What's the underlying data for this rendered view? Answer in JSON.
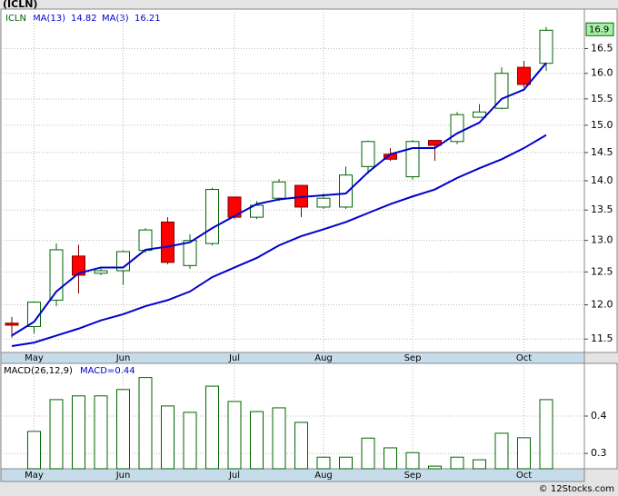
{
  "chart_data": [
    {
      "type": "candlestick",
      "title": "(ICLN)",
      "symbol": "ICLN",
      "log_scale": true,
      "grid": true,
      "categories": [
        null,
        "May",
        null,
        null,
        null,
        "Jun",
        null,
        null,
        null,
        null,
        "Jul",
        null,
        null,
        null,
        "Aug",
        null,
        null,
        null,
        "Sep",
        null,
        null,
        null,
        null,
        "Oct",
        null
      ],
      "open": [
        11.73,
        11.68,
        12.07,
        12.75,
        12.48,
        12.52,
        12.84,
        13.3,
        12.6,
        12.95,
        13.72,
        13.38,
        13.7,
        13.92,
        13.55,
        13.55,
        14.25,
        14.47,
        14.07,
        14.72,
        14.7,
        15.15,
        15.32,
        16.12,
        16.2
      ],
      "high": [
        11.82,
        12.05,
        12.95,
        12.93,
        12.57,
        12.84,
        13.2,
        13.38,
        13.1,
        13.88,
        13.73,
        13.65,
        14.03,
        13.93,
        13.78,
        14.25,
        14.72,
        14.58,
        14.73,
        14.73,
        15.25,
        15.4,
        16.12,
        16.25,
        16.95
      ],
      "low": [
        11.52,
        11.58,
        11.98,
        12.17,
        12.45,
        12.3,
        12.8,
        12.62,
        12.55,
        12.92,
        13.35,
        13.35,
        13.65,
        13.38,
        13.52,
        13.52,
        14.12,
        14.35,
        14.02,
        14.35,
        14.65,
        15.15,
        15.3,
        15.72,
        16.05
      ],
      "close": [
        11.7,
        12.04,
        12.85,
        12.45,
        12.52,
        12.82,
        13.17,
        12.65,
        13.0,
        13.85,
        13.38,
        13.58,
        13.98,
        13.55,
        13.7,
        14.1,
        14.7,
        14.38,
        14.7,
        14.63,
        15.2,
        15.25,
        16.0,
        15.78,
        16.88
      ],
      "up_color": "#006400",
      "down_color": "#ff0000",
      "series": [
        {
          "name": "MA(13)",
          "legend_value": 14.82,
          "color": "#0000cc",
          "values": [
            11.4,
            11.45,
            11.55,
            11.65,
            11.77,
            11.86,
            11.98,
            12.07,
            12.2,
            12.42,
            12.57,
            12.72,
            12.92,
            13.07,
            13.18,
            13.3,
            13.45,
            13.6,
            13.73,
            13.85,
            14.05,
            14.22,
            14.38,
            14.58,
            14.82
          ]
        },
        {
          "name": "MA(3)",
          "legend_value": 16.21,
          "color": "#0000cc",
          "values": [
            11.55,
            11.75,
            12.2,
            12.48,
            12.57,
            12.57,
            12.85,
            12.9,
            12.97,
            13.2,
            13.4,
            13.6,
            13.68,
            13.72,
            13.75,
            13.78,
            14.15,
            14.47,
            14.58,
            14.58,
            14.85,
            15.05,
            15.5,
            15.68,
            16.21
          ]
        }
      ],
      "last_price": 16.9,
      "ylim": [
        11.31,
        17.33
      ],
      "yticks": [
        11.5,
        {
          "value": 12,
          "label": "12.0"
        },
        12.5,
        {
          "value": 13,
          "label": "13.0"
        },
        13.5,
        {
          "value": 14,
          "label": "14.0"
        },
        14.5,
        {
          "value": 15,
          "label": "15.0"
        },
        15.5,
        {
          "value": 16,
          "label": "16.0"
        },
        16.5
      ],
      "credit": "© 12Stocks.com"
    },
    {
      "type": "bar",
      "title": "MACD(26,12,9)",
      "annotation": "MACD=0.44",
      "color": "#006400",
      "grid": true,
      "categories": [
        null,
        "May",
        null,
        null,
        null,
        "Jun",
        null,
        null,
        null,
        null,
        "Jul",
        null,
        null,
        null,
        "Aug",
        null,
        null,
        null,
        "Sep",
        null,
        null,
        null,
        null,
        "Oct",
        null
      ],
      "values": [
        null,
        0.359,
        0.444,
        0.454,
        0.454,
        0.471,
        0.503,
        0.427,
        0.41,
        0.48,
        0.439,
        0.412,
        0.422,
        0.383,
        0.29,
        0.29,
        0.341,
        0.315,
        0.302,
        0.266,
        0.29,
        0.283,
        0.354,
        0.342,
        0.444
      ],
      "ylim": [
        0.259,
        0.541
      ],
      "yticks": [
        0.3,
        0.4
      ]
    }
  ]
}
